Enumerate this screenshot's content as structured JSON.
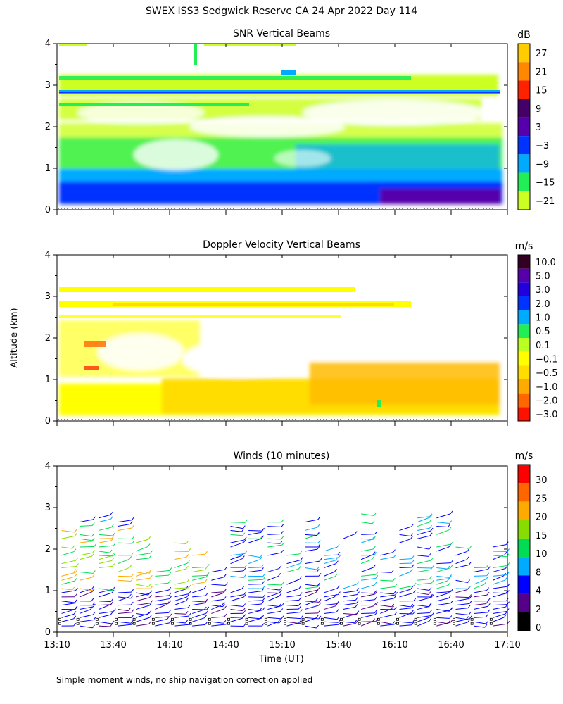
{
  "main_title": "SWEX ISS3 Sedgwick Reserve CA  24 Apr 2022 Day 114",
  "ylabel": "Altitude (km)",
  "xlabel": "Time (UT)",
  "footnote": "Simple moment winds, no ship navigation correction applied",
  "colors": {
    "background": "#ffffff",
    "axis": "#000000"
  },
  "chart_data": [
    {
      "type": "heatmap",
      "title": "SNR Vertical Beams",
      "ylabel": "Altitude (km)",
      "ylim": [
        0,
        4
      ],
      "yticks": [
        "0",
        "1",
        "2",
        "3",
        "4"
      ],
      "x_hours": [
        13.1667,
        17.1667
      ],
      "colorbar_unit": "dB",
      "colorbar_labels": [
        "27",
        "21",
        "15",
        "9",
        "3",
        "−3",
        "−9",
        "−15",
        "−21"
      ],
      "colorbar_colors": [
        "#ffcc00",
        "#ff8800",
        "#ff2200",
        "#440066",
        "#5500aa",
        "#0033ff",
        "#00aaff",
        "#22ee55",
        "#ccff22"
      ],
      "notes": "Weak return (-21 to -15 dB) scattered above 1 km with layers near 2.5, 2.8 and 3.1 km; strong return (-3 to 3 dB) below 0.5 km"
    },
    {
      "type": "heatmap",
      "title": "Doppler Velocity Vertical Beams",
      "ylabel": "Altitude (km)",
      "ylim": [
        0,
        4
      ],
      "yticks": [
        "0",
        "1",
        "2",
        "3",
        "4"
      ],
      "x_hours": [
        13.1667,
        17.1667
      ],
      "colorbar_unit": "m/s",
      "colorbar_labels": [
        "10.0",
        "5.0",
        "3.0",
        "2.0",
        "1.0",
        "0.5",
        "0.1",
        "−0.1",
        "−0.5",
        "−1.0",
        "−2.0",
        "−3.0"
      ],
      "colorbar_colors": [
        "#330022",
        "#5500aa",
        "#2200dd",
        "#0033ff",
        "#00aaff",
        "#22ee55",
        "#bbff22",
        "#ffff00",
        "#ffdd00",
        "#ffaa00",
        "#ff6600",
        "#ff1100"
      ],
      "notes": "Mostly -0.1 to -0.5 m/s (yellow/orange) below 0.8 km and in layers near 2.8 and 3.1 km"
    },
    {
      "type": "wind_barbs",
      "title": "Winds (10 minutes)",
      "ylabel": "Altitude (km)",
      "xlabel": "Time (UT)",
      "ylim": [
        0,
        4
      ],
      "yticks": [
        "0",
        "1",
        "2",
        "3",
        "4"
      ],
      "x_hours": [
        13.1667,
        17.1667
      ],
      "xticks": [
        "13:10",
        "13:40",
        "14:10",
        "14:40",
        "15:10",
        "15:40",
        "16:10",
        "16:40",
        "17:10"
      ],
      "xtick_hours": [
        13.1667,
        13.6667,
        14.1667,
        14.6667,
        15.1667,
        15.6667,
        16.1667,
        16.6667,
        17.1667
      ],
      "colorbar_unit": "m/s",
      "colorbar_labels": [
        "30",
        "25",
        "20",
        "15",
        "10",
        "8",
        "4",
        "2",
        "0"
      ],
      "colorbar_values": [
        30,
        25,
        20,
        15,
        10,
        8,
        4,
        2,
        0
      ],
      "colorbar_colors": [
        "#ff0000",
        "#ff6600",
        "#ffaa00",
        "#88dd00",
        "#00dd55",
        "#00aaff",
        "#0000ff",
        "#550088",
        "#000000"
      ],
      "profile_times": [
        13.17,
        13.33,
        13.5,
        13.67,
        13.83,
        14.0,
        14.17,
        14.33,
        14.5,
        14.67,
        14.83,
        15.0,
        15.17,
        15.33,
        15.5,
        15.67,
        15.83,
        16.0,
        16.17,
        16.33,
        16.5,
        16.67,
        16.83,
        17.0
      ],
      "notes": "Winds mostly 2-10 m/s, stronger (10-25 m/s) between 1 and 2.5 km before 14:20"
    }
  ]
}
